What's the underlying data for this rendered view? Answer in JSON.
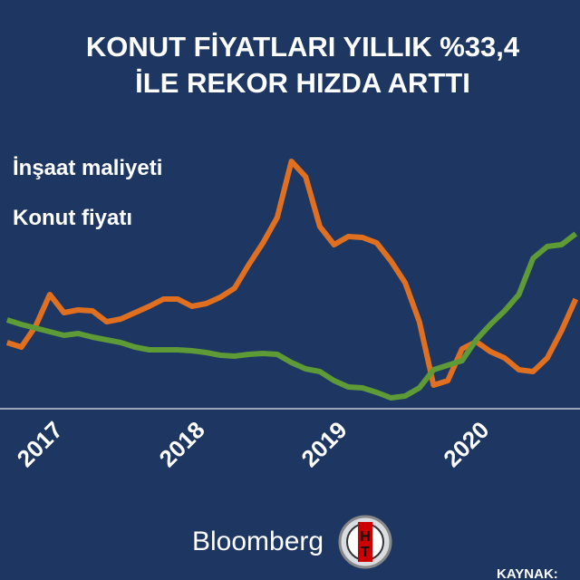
{
  "chart_data": {
    "type": "line",
    "title": [
      "KONUT FİYATLARI YILLIK %33,4",
      "İLE REKOR HIZDA ARTTI"
    ],
    "x": [
      2016.6,
      2016.7,
      2016.8,
      2016.9,
      2017.0,
      2017.1,
      2017.2,
      2017.3,
      2017.4,
      2017.5,
      2017.6,
      2017.7,
      2017.8,
      2017.9,
      2018.0,
      2018.1,
      2018.2,
      2018.3,
      2018.4,
      2018.5,
      2018.6,
      2018.7,
      2018.8,
      2018.9,
      2019.0,
      2019.1,
      2019.2,
      2019.3,
      2019.4,
      2019.5,
      2019.6,
      2019.7,
      2019.8,
      2019.9,
      2020.0,
      2020.1,
      2020.2,
      2020.3,
      2020.4,
      2020.5,
      2020.6
    ],
    "series": [
      {
        "name": "İnşaat maliyeti",
        "color": "#e07020",
        "values": [
          72,
          67,
          90,
          125,
          105,
          108,
          107,
          95,
          98,
          105,
          112,
          120,
          120,
          112,
          115,
          122,
          132,
          158,
          182,
          210,
          272,
          255,
          200,
          180,
          189,
          188,
          182,
          162,
          138,
          95,
          25,
          30,
          65,
          73,
          62,
          55,
          42,
          40,
          55,
          85,
          120
        ]
      },
      {
        "name": "Konut fiyatı",
        "color": "#5e9a35",
        "values": [
          97,
          92,
          88,
          84,
          80,
          82,
          78,
          75,
          72,
          67,
          64,
          64,
          64,
          63,
          61,
          58,
          57,
          59,
          60,
          59,
          50,
          43,
          40,
          30,
          23,
          22,
          17,
          11,
          13,
          22,
          42,
          47,
          52,
          75,
          92,
          107,
          125,
          165,
          178,
          180,
          192
        ]
      }
    ],
    "xlim": [
      2016.55,
      2020.63
    ],
    "xticks": [
      2017,
      2018,
      2019,
      2020,
      2021
    ],
    "ylim": [
      0,
      300
    ]
  },
  "footer": {
    "brand": "Bloomberg",
    "source": "KAYNAK:"
  }
}
